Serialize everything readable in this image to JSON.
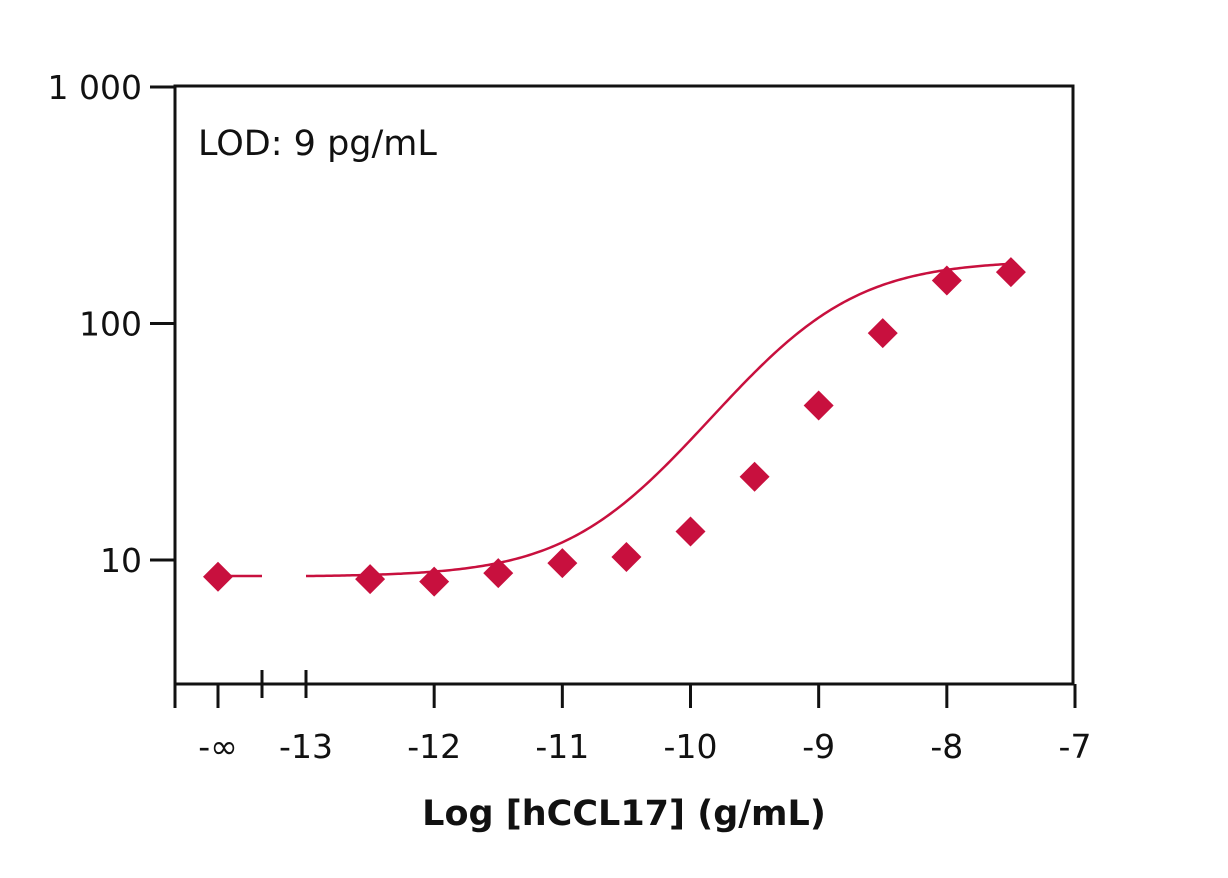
{
  "chart_data": {
    "type": "scatter",
    "title": "",
    "annotation": "LOD: 9 pg/mL",
    "xlabel": "Log [hCCL17] (g/mL)",
    "ylabel": "",
    "y_scale": "log",
    "ylim": [
      3,
      1000
    ],
    "xlim": [
      -13,
      -7
    ],
    "x_ticks": [
      -13,
      -12,
      -11,
      -10,
      -9,
      -8,
      -7
    ],
    "x_tick_labels": [
      "-13",
      "-12",
      "-11",
      "-10",
      "-9",
      "-8",
      "-7"
    ],
    "x_break_label": "-∞",
    "y_ticks": [
      10,
      100,
      1000
    ],
    "y_tick_labels": [
      "10",
      "100",
      "1 000"
    ],
    "grid": false,
    "marker": "diamond",
    "color": "#C8103E",
    "series": [
      {
        "points": [
          {
            "x": "-∞",
            "y": 8.5
          },
          {
            "x": -12.5,
            "y": 8.3
          },
          {
            "x": -12.0,
            "y": 8.1
          },
          {
            "x": -11.5,
            "y": 8.8
          },
          {
            "x": -11.0,
            "y": 9.7
          },
          {
            "x": -10.5,
            "y": 10.3
          },
          {
            "x": -10.0,
            "y": 13.2
          },
          {
            "x": -9.5,
            "y": 22.5
          },
          {
            "x": -9.0,
            "y": 45.0
          },
          {
            "x": -8.5,
            "y": 91.0
          },
          {
            "x": -8.0,
            "y": 152.0
          },
          {
            "x": -7.5,
            "y": 165.0
          }
        ]
      }
    ],
    "fit_curve": {
      "bottom": 8.5,
      "top": 185,
      "log_ec50": -9.1,
      "hill": 0.9
    }
  }
}
